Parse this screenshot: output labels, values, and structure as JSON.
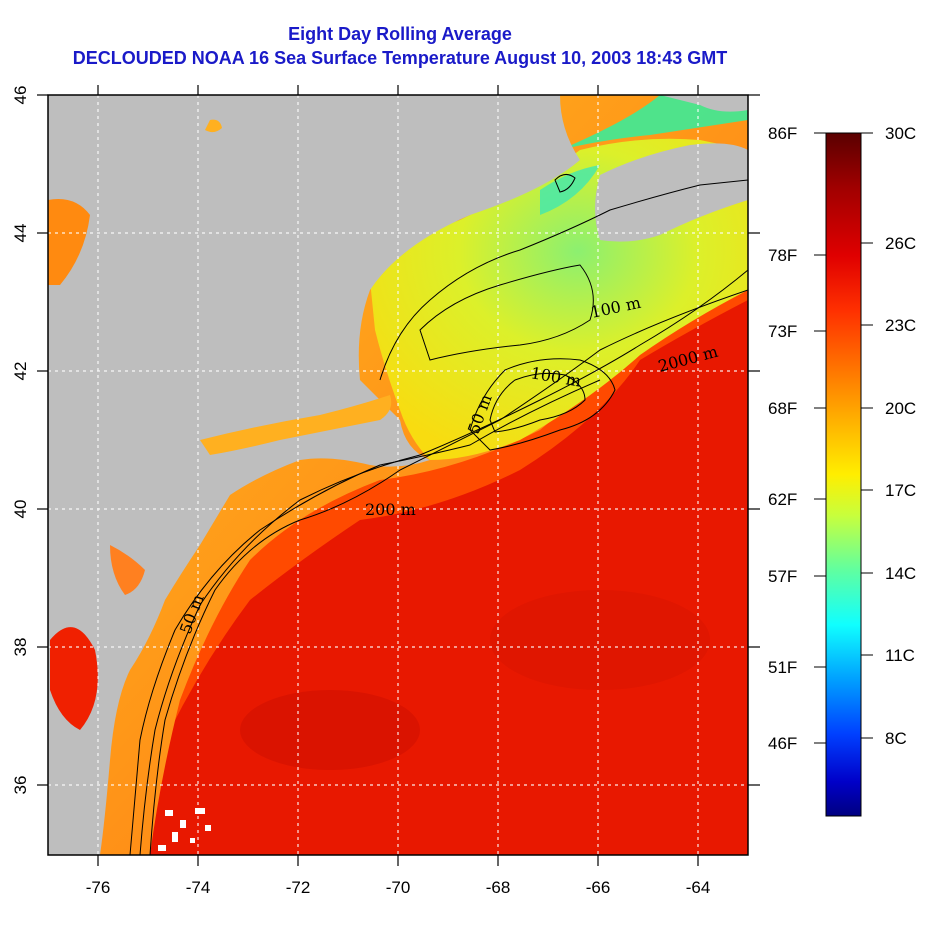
{
  "title": "Eight Day Rolling Average",
  "subtitle": "DECLOUDED NOAA 16 Sea Surface Temperature August 10, 2003 18:43 GMT",
  "map": {
    "longitude_ticks": [
      "-76",
      "-74",
      "-72",
      "-70",
      "-68",
      "-66",
      "-64"
    ],
    "latitude_ticks": [
      "46",
      "44",
      "42",
      "40",
      "38",
      "36"
    ],
    "lon_range": [
      -77,
      -63
    ],
    "lat_range": [
      35,
      46
    ],
    "grid": true,
    "contour_labels": [
      "50 m",
      "200 m",
      "100 m",
      "2000 m",
      "100 m",
      "50 m"
    ]
  },
  "colorbar": {
    "fahrenheit_labels": [
      "86F",
      "78F",
      "73F",
      "68F",
      "62F",
      "57F",
      "51F",
      "46F"
    ],
    "celsius_labels": [
      "30C",
      "26C",
      "23C",
      "20C",
      "17C",
      "14C",
      "11C",
      "8C"
    ],
    "colors": [
      "#5a0000",
      "#a00000",
      "#e00000",
      "#ff3000",
      "#ff7000",
      "#ffb000",
      "#ffee00",
      "#c8ff3c",
      "#60ffa0",
      "#10ffff",
      "#00a0ff",
      "#0040ff",
      "#0000c8",
      "#000080"
    ]
  },
  "colors": {
    "land": "#bebebe",
    "title": "#1a1ac8",
    "deep_water": "#e81800",
    "shelf_water": "#ff8a10",
    "gulf_of_maine": "#f0f020"
  }
}
